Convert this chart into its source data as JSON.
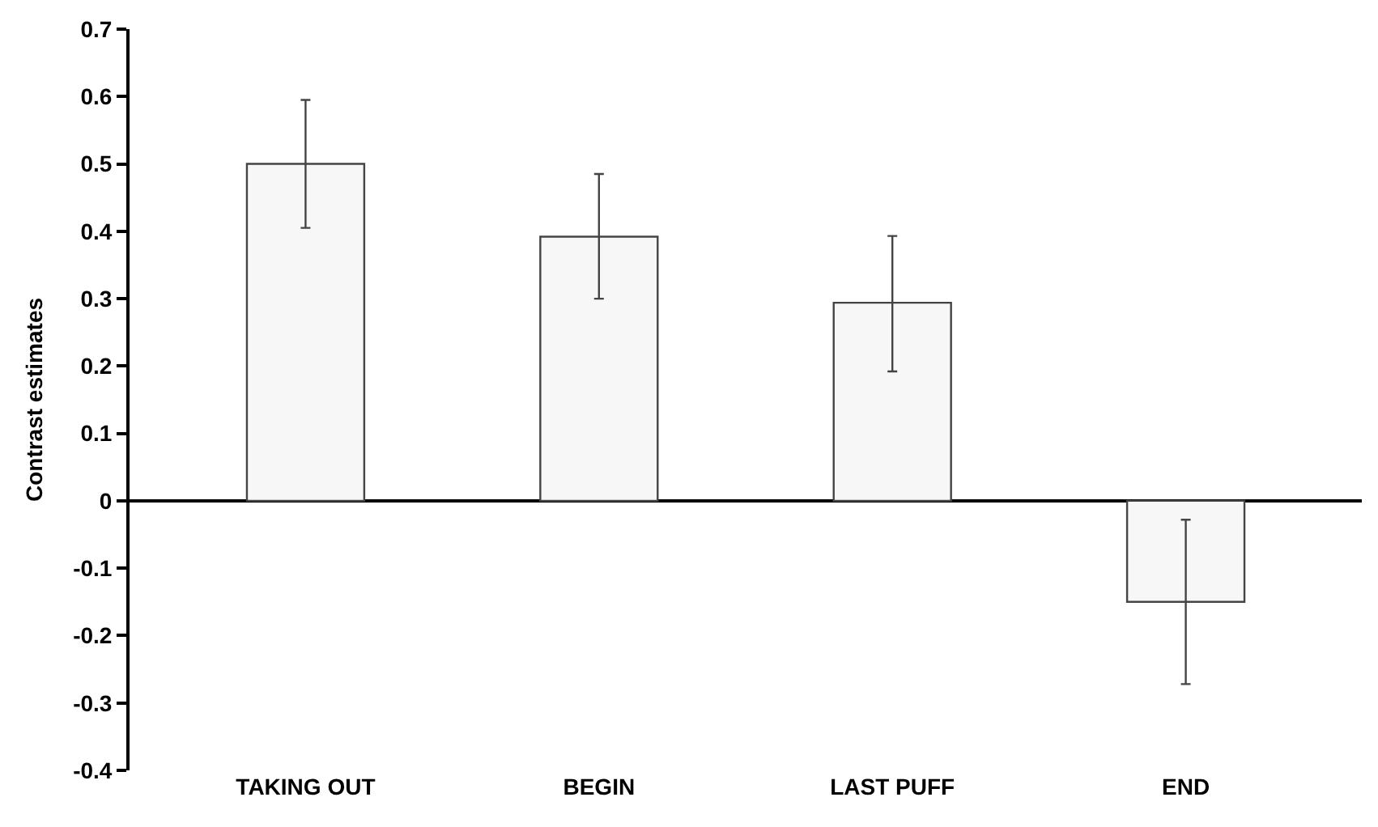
{
  "chart_data": {
    "type": "bar",
    "ylabel": "Contrast estimates",
    "categories": [
      "TAKING OUT",
      "BEGIN",
      "LAST PUFF",
      "END"
    ],
    "values": [
      0.5,
      0.392,
      0.294,
      -0.15
    ],
    "errors": [
      [
        0.405,
        0.595
      ],
      [
        0.3,
        0.485
      ],
      [
        0.192,
        0.393
      ],
      [
        -0.272,
        -0.028
      ]
    ],
    "color": "#f7f7f7",
    "ylim": [
      -0.4,
      0.7
    ],
    "yticks": [
      -0.4,
      -0.3,
      -0.2,
      -0.1,
      0,
      0.1,
      0.2,
      0.3,
      0.4,
      0.5,
      0.6,
      0.7
    ]
  }
}
